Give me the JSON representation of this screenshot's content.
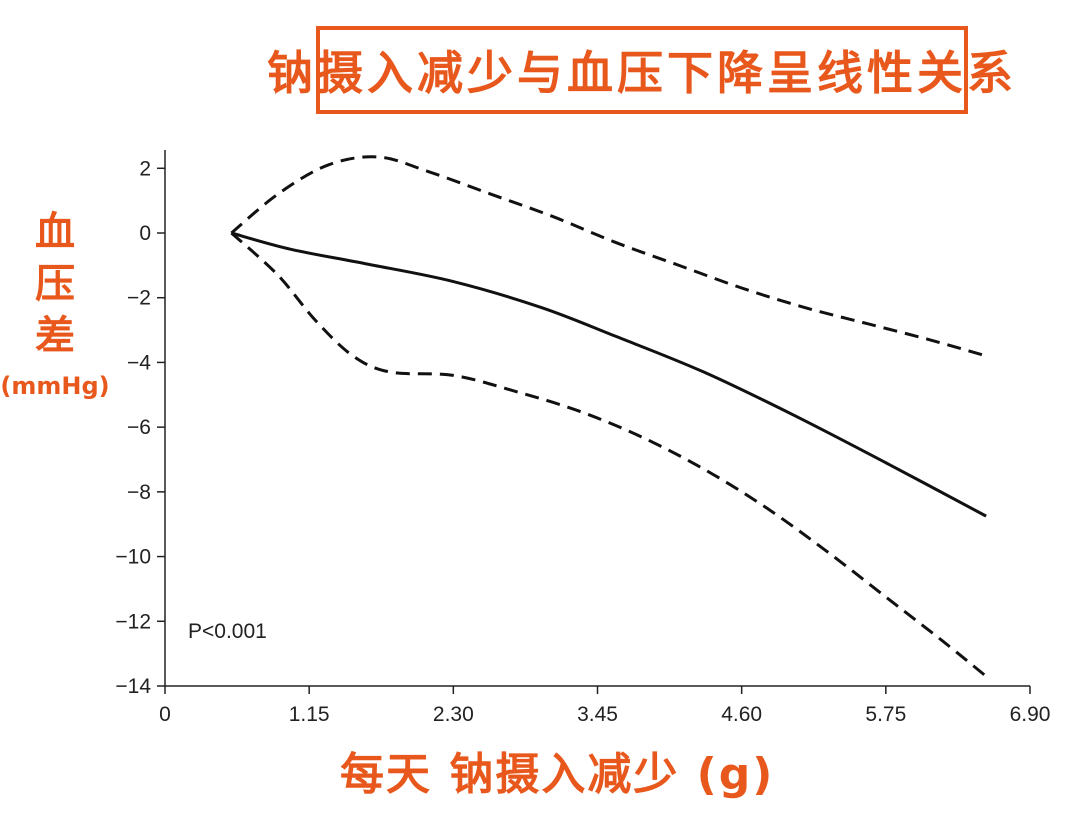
{
  "chart_data": {
    "type": "line",
    "title": "钠摄入减少与血压下降呈线性关系",
    "xlabel": "每天 钠摄入减少 (g)",
    "ylabel_main": "血压差",
    "ylabel_unit": "(mmHg)",
    "annotation": "P<0.001",
    "xlim": [
      0,
      6.9
    ],
    "ylim": [
      -14,
      2.5
    ],
    "x_ticks": [
      0,
      1.15,
      2.3,
      3.45,
      4.6,
      5.75,
      6.9
    ],
    "x_tick_labels": [
      "0",
      "1.15",
      "2.30",
      "3.45",
      "4.60",
      "5.75",
      "6.90"
    ],
    "y_ticks": [
      2,
      0,
      -2,
      -4,
      -6,
      -8,
      -10,
      -12,
      -14
    ],
    "y_tick_labels": [
      "2",
      "0",
      "−2",
      "−4",
      "−6",
      "−8",
      "−10",
      "−12",
      "−14"
    ],
    "series": [
      {
        "style": "solid",
        "x": [
          0.53,
          1.0,
          1.6,
          2.3,
          3.0,
          3.6,
          4.3,
          5.0,
          5.75,
          6.55
        ],
        "y": [
          0.0,
          -0.5,
          -0.95,
          -1.5,
          -2.3,
          -3.2,
          -4.3,
          -5.6,
          -7.1,
          -8.75
        ]
      },
      {
        "style": "dashed",
        "x": [
          0.53,
          0.9,
          1.3,
          1.7,
          2.1,
          2.6,
          3.1,
          3.6,
          4.1,
          4.6,
          5.1,
          5.6,
          6.1,
          6.55
        ],
        "y": [
          0.0,
          1.2,
          2.1,
          2.35,
          1.9,
          1.2,
          0.5,
          -0.3,
          -1.0,
          -1.7,
          -2.3,
          -2.8,
          -3.3,
          -3.8
        ]
      },
      {
        "style": "dashed",
        "x": [
          0.53,
          0.9,
          1.2,
          1.5,
          1.8,
          2.3,
          2.8,
          3.3,
          3.8,
          4.3,
          4.8,
          5.3,
          5.8,
          6.2,
          6.55
        ],
        "y": [
          0.0,
          -1.3,
          -2.7,
          -3.8,
          -4.3,
          -4.4,
          -4.9,
          -5.5,
          -6.3,
          -7.3,
          -8.5,
          -9.9,
          -11.4,
          -12.6,
          -13.7
        ]
      }
    ]
  }
}
